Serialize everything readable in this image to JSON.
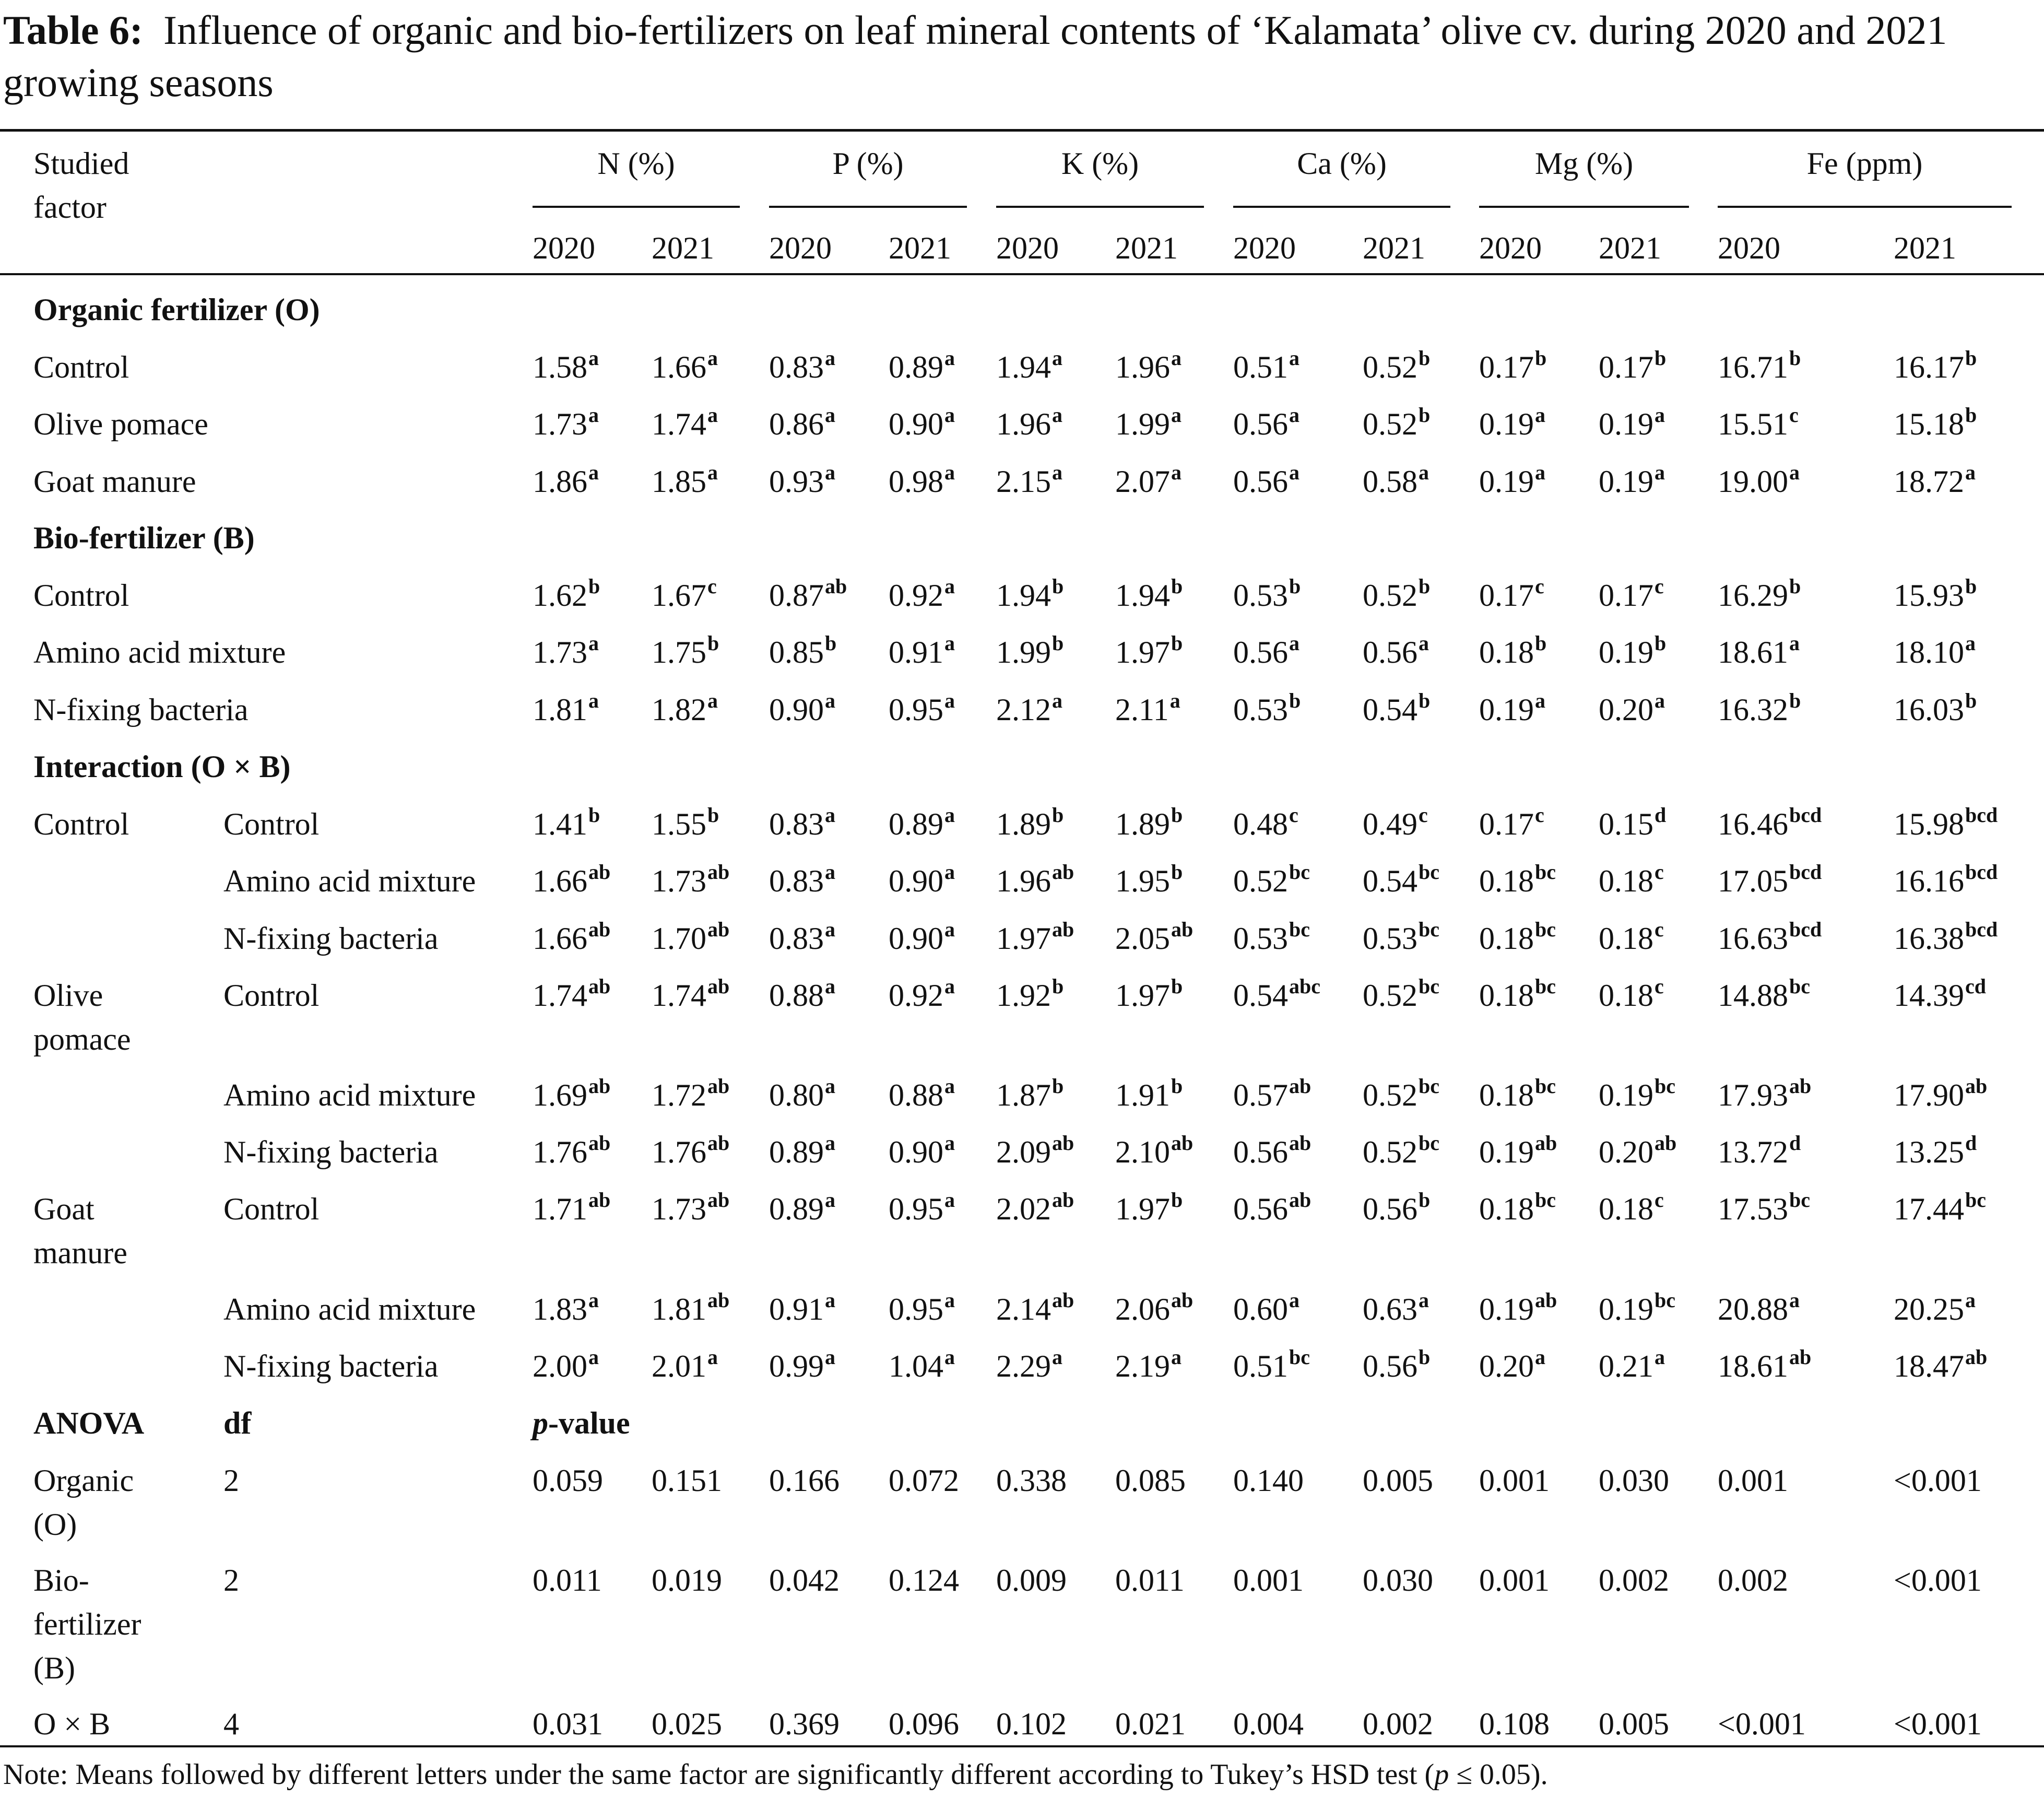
{
  "title": {
    "label": "Table 6:",
    "text": "Influence of organic and bio-fertilizers on leaf mineral contents of ‘Kalamata’ olive cv. during 2020 and 2021 growing seasons"
  },
  "header": {
    "factor_line1": "Studied",
    "factor_line2": "factor",
    "groups": [
      "N (%)",
      "P (%)",
      "K (%)",
      "Ca (%)",
      "Mg (%)",
      "Fe (ppm)"
    ],
    "years": [
      "2020",
      "2021",
      "2020",
      "2021",
      "2020",
      "2021",
      "2020",
      "2021",
      "2020",
      "2021",
      "2020",
      "2021"
    ]
  },
  "sections": {
    "organic": "Organic fertilizer (O)",
    "bio": "Bio-fertilizer (B)",
    "interaction": "Interaction (O × B)",
    "anova": "ANOVA",
    "df": "df",
    "pvalue_p": "p",
    "pvalue_rest": "-value"
  },
  "rows": [
    {
      "c1": "Control",
      "vals": [
        [
          "1.58",
          "a"
        ],
        [
          "1.66",
          "a"
        ],
        [
          "0.83",
          "a"
        ],
        [
          "0.89",
          "a"
        ],
        [
          "1.94",
          "a"
        ],
        [
          "1.96",
          "a"
        ],
        [
          "0.51",
          "a"
        ],
        [
          "0.52",
          "b"
        ],
        [
          "0.17",
          "b"
        ],
        [
          "0.17",
          "b"
        ],
        [
          "16.71",
          "b"
        ],
        [
          "16.17",
          "b"
        ]
      ]
    },
    {
      "c1": "Olive pomace",
      "vals": [
        [
          "1.73",
          "a"
        ],
        [
          "1.74",
          "a"
        ],
        [
          "0.86",
          "a"
        ],
        [
          "0.90",
          "a"
        ],
        [
          "1.96",
          "a"
        ],
        [
          "1.99",
          "a"
        ],
        [
          "0.56",
          "a"
        ],
        [
          "0.52",
          "b"
        ],
        [
          "0.19",
          "a"
        ],
        [
          "0.19",
          "a"
        ],
        [
          "15.51",
          "c"
        ],
        [
          "15.18",
          "b"
        ]
      ]
    },
    {
      "c1": "Goat manure",
      "vals": [
        [
          "1.86",
          "a"
        ],
        [
          "1.85",
          "a"
        ],
        [
          "0.93",
          "a"
        ],
        [
          "0.98",
          "a"
        ],
        [
          "2.15",
          "a"
        ],
        [
          "2.07",
          "a"
        ],
        [
          "0.56",
          "a"
        ],
        [
          "0.58",
          "a"
        ],
        [
          "0.19",
          "a"
        ],
        [
          "0.19",
          "a"
        ],
        [
          "19.00",
          "a"
        ],
        [
          "18.72",
          "a"
        ]
      ]
    },
    {
      "c1": "Control",
      "vals": [
        [
          "1.62",
          "b"
        ],
        [
          "1.67",
          "c"
        ],
        [
          "0.87",
          "ab"
        ],
        [
          "0.92",
          "a"
        ],
        [
          "1.94",
          "b"
        ],
        [
          "1.94",
          "b"
        ],
        [
          "0.53",
          "b"
        ],
        [
          "0.52",
          "b"
        ],
        [
          "0.17",
          "c"
        ],
        [
          "0.17",
          "c"
        ],
        [
          "16.29",
          "b"
        ],
        [
          "15.93",
          "b"
        ]
      ]
    },
    {
      "c1": "Amino acid mixture",
      "vals": [
        [
          "1.73",
          "a"
        ],
        [
          "1.75",
          "b"
        ],
        [
          "0.85",
          "b"
        ],
        [
          "0.91",
          "a"
        ],
        [
          "1.99",
          "b"
        ],
        [
          "1.97",
          "b"
        ],
        [
          "0.56",
          "a"
        ],
        [
          "0.56",
          "a"
        ],
        [
          "0.18",
          "b"
        ],
        [
          "0.19",
          "b"
        ],
        [
          "18.61",
          "a"
        ],
        [
          "18.10",
          "a"
        ]
      ]
    },
    {
      "c1": "N-fixing bacteria",
      "vals": [
        [
          "1.81",
          "a"
        ],
        [
          "1.82",
          "a"
        ],
        [
          "0.90",
          "a"
        ],
        [
          "0.95",
          "a"
        ],
        [
          "2.12",
          "a"
        ],
        [
          "2.11",
          "a"
        ],
        [
          "0.53",
          "b"
        ],
        [
          "0.54",
          "b"
        ],
        [
          "0.19",
          "a"
        ],
        [
          "0.20",
          "a"
        ],
        [
          "16.32",
          "b"
        ],
        [
          "16.03",
          "b"
        ]
      ]
    },
    {
      "c1": "Control",
      "c2": "Control",
      "vals": [
        [
          "1.41",
          "b"
        ],
        [
          "1.55",
          "b"
        ],
        [
          "0.83",
          "a"
        ],
        [
          "0.89",
          "a"
        ],
        [
          "1.89",
          "b"
        ],
        [
          "1.89",
          "b"
        ],
        [
          "0.48",
          "c"
        ],
        [
          "0.49",
          "c"
        ],
        [
          "0.17",
          "c"
        ],
        [
          "0.15",
          "d"
        ],
        [
          "16.46",
          "bcd"
        ],
        [
          "15.98",
          "bcd"
        ]
      ]
    },
    {
      "c2": "Amino acid mixture",
      "vals": [
        [
          "1.66",
          "ab"
        ],
        [
          "1.73",
          "ab"
        ],
        [
          "0.83",
          "a"
        ],
        [
          "0.90",
          "a"
        ],
        [
          "1.96",
          "ab"
        ],
        [
          "1.95",
          "b"
        ],
        [
          "0.52",
          "bc"
        ],
        [
          "0.54",
          "bc"
        ],
        [
          "0.18",
          "bc"
        ],
        [
          "0.18",
          "c"
        ],
        [
          "17.05",
          "bcd"
        ],
        [
          "16.16",
          "bcd"
        ]
      ]
    },
    {
      "c2": "N-fixing bacteria",
      "vals": [
        [
          "1.66",
          "ab"
        ],
        [
          "1.70",
          "ab"
        ],
        [
          "0.83",
          "a"
        ],
        [
          "0.90",
          "a"
        ],
        [
          "1.97",
          "ab"
        ],
        [
          "2.05",
          "ab"
        ],
        [
          "0.53",
          "bc"
        ],
        [
          "0.53",
          "bc"
        ],
        [
          "0.18",
          "bc"
        ],
        [
          "0.18",
          "c"
        ],
        [
          "16.63",
          "bcd"
        ],
        [
          "16.38",
          "bcd"
        ]
      ]
    },
    {
      "c1": "Olive",
      "c1b": "pomace",
      "c2": "Control",
      "vals": [
        [
          "1.74",
          "ab"
        ],
        [
          "1.74",
          "ab"
        ],
        [
          "0.88",
          "a"
        ],
        [
          "0.92",
          "a"
        ],
        [
          "1.92",
          "b"
        ],
        [
          "1.97",
          "b"
        ],
        [
          "0.54",
          "abc"
        ],
        [
          "0.52",
          "bc"
        ],
        [
          "0.18",
          "bc"
        ],
        [
          "0.18",
          "c"
        ],
        [
          "14.88",
          "bc"
        ],
        [
          "14.39",
          "cd"
        ]
      ]
    },
    {
      "c2": "Amino acid mixture",
      "vals": [
        [
          "1.69",
          "ab"
        ],
        [
          "1.72",
          "ab"
        ],
        [
          "0.80",
          "a"
        ],
        [
          "0.88",
          "a"
        ],
        [
          "1.87",
          "b"
        ],
        [
          "1.91",
          "b"
        ],
        [
          "0.57",
          "ab"
        ],
        [
          "0.52",
          "bc"
        ],
        [
          "0.18",
          "bc"
        ],
        [
          "0.19",
          "bc"
        ],
        [
          "17.93",
          "ab"
        ],
        [
          "17.90",
          "ab"
        ]
      ]
    },
    {
      "c2": "N-fixing bacteria",
      "vals": [
        [
          "1.76",
          "ab"
        ],
        [
          "1.76",
          "ab"
        ],
        [
          "0.89",
          "a"
        ],
        [
          "0.90",
          "a"
        ],
        [
          "2.09",
          "ab"
        ],
        [
          "2.10",
          "ab"
        ],
        [
          "0.56",
          "ab"
        ],
        [
          "0.52",
          "bc"
        ],
        [
          "0.19",
          "ab"
        ],
        [
          "0.20",
          "ab"
        ],
        [
          "13.72",
          "d"
        ],
        [
          "13.25",
          "d"
        ]
      ]
    },
    {
      "c1": "Goat",
      "c1b": "manure",
      "c2": "Control",
      "vals": [
        [
          "1.71",
          "ab"
        ],
        [
          "1.73",
          "ab"
        ],
        [
          "0.89",
          "a"
        ],
        [
          "0.95",
          "a"
        ],
        [
          "2.02",
          "ab"
        ],
        [
          "1.97",
          "b"
        ],
        [
          "0.56",
          "ab"
        ],
        [
          "0.56",
          "b"
        ],
        [
          "0.18",
          "bc"
        ],
        [
          "0.18",
          "c"
        ],
        [
          "17.53",
          "bc"
        ],
        [
          "17.44",
          "bc"
        ]
      ]
    },
    {
      "c2": "Amino acid mixture",
      "vals": [
        [
          "1.83",
          "a"
        ],
        [
          "1.81",
          "ab"
        ],
        [
          "0.91",
          "a"
        ],
        [
          "0.95",
          "a"
        ],
        [
          "2.14",
          "ab"
        ],
        [
          "2.06",
          "ab"
        ],
        [
          "0.60",
          "a"
        ],
        [
          "0.63",
          "a"
        ],
        [
          "0.19",
          "ab"
        ],
        [
          "0.19",
          "bc"
        ],
        [
          "20.88",
          "a"
        ],
        [
          "20.25",
          "a"
        ]
      ]
    },
    {
      "c2": "N-fixing bacteria",
      "vals": [
        [
          "2.00",
          "a"
        ],
        [
          "2.01",
          "a"
        ],
        [
          "0.99",
          "a"
        ],
        [
          "1.04",
          "a"
        ],
        [
          "2.29",
          "a"
        ],
        [
          "2.19",
          "a"
        ],
        [
          "0.51",
          "bc"
        ],
        [
          "0.56",
          "b"
        ],
        [
          "0.20",
          "a"
        ],
        [
          "0.21",
          "a"
        ],
        [
          "18.61",
          "ab"
        ],
        [
          "18.47",
          "ab"
        ]
      ]
    }
  ],
  "anova": [
    {
      "lines": [
        "Organic",
        "(O)"
      ],
      "df": "2",
      "vals": [
        "0.059",
        "0.151",
        "0.166",
        "0.072",
        "0.338",
        "0.085",
        "0.140",
        "0.005",
        "0.001",
        "0.030",
        "0.001",
        "<0.001"
      ]
    },
    {
      "lines": [
        "Bio-",
        "fertilizer",
        "(B)"
      ],
      "df": "2",
      "vals": [
        "0.011",
        "0.019",
        "0.042",
        "0.124",
        "0.009",
        "0.011",
        "0.001",
        "0.030",
        "0.001",
        "0.002",
        "0.002",
        "<0.001"
      ]
    },
    {
      "lines": [
        "O × B"
      ],
      "df": "4",
      "vals": [
        "0.031",
        "0.025",
        "0.369",
        "0.096",
        "0.102",
        "0.021",
        "0.004",
        "0.002",
        "0.108",
        "0.005",
        "<0.001",
        "<0.001"
      ]
    }
  ],
  "note": {
    "text": "Note: Means followed by different letters under the same factor are significantly different according to Tukey’s HSD test (",
    "p": "p",
    "tail": " ≤ 0.05)."
  }
}
